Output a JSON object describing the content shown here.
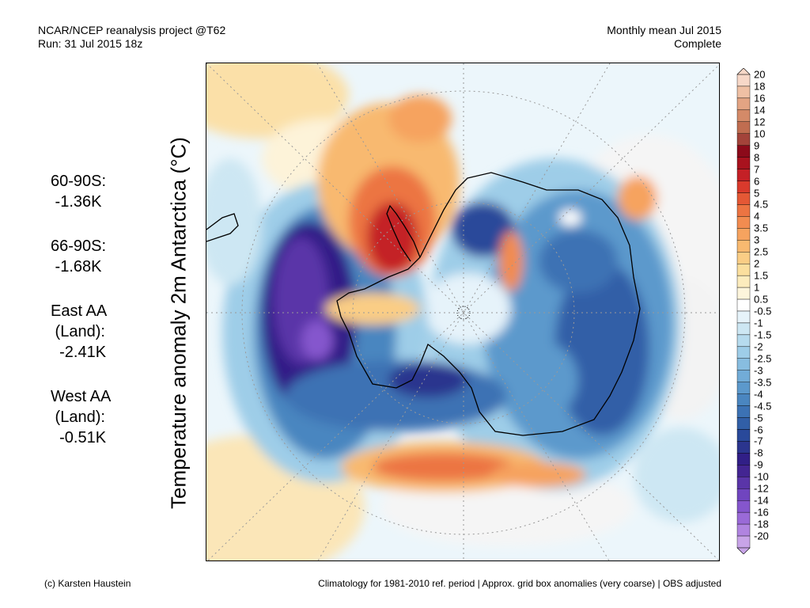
{
  "header": {
    "left_line1": "NCAR/NCEP reanalysis project @T62",
    "left_line2": "Run: 31 Jul 2015 18z",
    "right_line1": "Monthly mean Jul 2015",
    "right_line2": "Complete"
  },
  "side_stats": [
    {
      "lines": [
        "60-90S:",
        " -1.36K"
      ]
    },
    {
      "lines": [
        "66-90S:",
        " -1.68K"
      ]
    },
    {
      "lines": [
        "East AA",
        " (Land):",
        "  -2.41K"
      ]
    },
    {
      "lines": [
        "West AA",
        " (Land):",
        "  -0.51K"
      ]
    }
  ],
  "map": {
    "title": "Temperature anomaly 2m Antarctica (°C)",
    "projection": "south polar stereographic"
  },
  "colorbar": {
    "labels": [
      "20",
      "18",
      "16",
      "14",
      "12",
      "10",
      "9",
      "8",
      "7",
      "6",
      "5",
      "4.5",
      "4",
      "3.5",
      "3",
      "2.5",
      "2",
      "1.5",
      "1",
      "0.5",
      "-0.5",
      "-1",
      "-1.5",
      "-2",
      "-2.5",
      "-3",
      "-3.5",
      "-4",
      "-4.5",
      "-5",
      "-6",
      "-7",
      "-8",
      "-9",
      "-10",
      "-12",
      "-14",
      "-16",
      "-18",
      "-20"
    ],
    "colors": [
      "#f7d8c8",
      "#efc0a4",
      "#e3a483",
      "#d48a68",
      "#c06d50",
      "#a3433a",
      "#8c0a1a",
      "#a8121e",
      "#c42026",
      "#d93a2c",
      "#e45835",
      "#ec7442",
      "#f28c50",
      "#f6a35f",
      "#f8b970",
      "#facd85",
      "#fbdf9e",
      "#fcecbd",
      "#fdf5dc",
      "#ffffff",
      "#e6f3fa",
      "#cde7f3",
      "#b6dbee",
      "#9ecde8",
      "#88bde0",
      "#72acd7",
      "#5c99cc",
      "#4a86c0",
      "#3c72b4",
      "#315fa7",
      "#29499a",
      "#2b358e",
      "#311f87",
      "#432592",
      "#5a35a8",
      "#7045bf",
      "#8556cd",
      "#9a6ad7",
      "#b084e0",
      "#c8a4e8"
    ]
  },
  "footer": {
    "left": "(c) Karsten Haustein",
    "right": "Climatology for 1981-2010 ref. period | Approx. grid box anomalies (very coarse) | OBS adjusted"
  }
}
